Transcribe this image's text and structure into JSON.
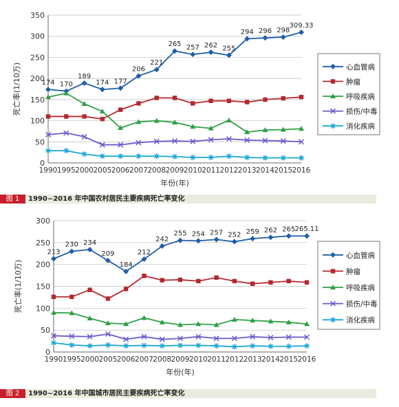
{
  "chart_data": [
    {
      "type": "line",
      "ylabel": "死亡率(1/10万)",
      "xlabel": "年份(年)",
      "ylim": [
        0,
        350
      ],
      "yticks": [
        0,
        50,
        100,
        150,
        200,
        250,
        300,
        350
      ],
      "x": [
        "1990",
        "1995",
        "2000",
        "2005",
        "2006",
        "2007",
        "2008",
        "2009",
        "2010",
        "2011",
        "2012",
        "2013",
        "2014",
        "2015",
        "2016"
      ],
      "series": [
        {
          "name": "心血管病",
          "color": "#1f5fa8",
          "marker": "diamond",
          "values": [
            174,
            170,
            189,
            174,
            177,
            206,
            221,
            265,
            257,
            262,
            255,
            294,
            296,
            298,
            309.33
          ],
          "labels": [
            "174",
            "170",
            "189",
            "174",
            "177",
            "206",
            "221",
            "265",
            "257",
            "262",
            "255",
            "294",
            "296",
            "298",
            "309.33"
          ]
        },
        {
          "name": "肿瘤",
          "color": "#b5282e",
          "marker": "square",
          "values": [
            110,
            110,
            110,
            104,
            126,
            141,
            154,
            154,
            141,
            147,
            147,
            144,
            150,
            153,
            156
          ]
        },
        {
          "name": "呼吸疾病",
          "color": "#2ea043",
          "marker": "triangle",
          "values": [
            156,
            165,
            140,
            122,
            83,
            97,
            100,
            96,
            86,
            82,
            101,
            73,
            78,
            79,
            81
          ]
        },
        {
          "name": "损伤/中毒",
          "color": "#6a5acd",
          "marker": "x",
          "values": [
            67,
            71,
            62,
            43,
            43,
            48,
            51,
            52,
            51,
            55,
            57,
            54,
            53,
            52,
            50
          ]
        },
        {
          "name": "消化疾病",
          "color": "#1ca7d6",
          "marker": "star",
          "values": [
            29,
            29,
            21,
            16,
            16,
            16,
            16,
            15,
            13,
            13,
            16,
            13,
            12,
            12,
            12
          ]
        }
      ],
      "legend": "right",
      "grid": "horizontal"
    },
    {
      "type": "line",
      "ylabel": "死亡率(1/10万)",
      "xlabel": "年份(年)",
      "ylim": [
        0,
        300
      ],
      "yticks": [
        0,
        50,
        100,
        150,
        200,
        250,
        300
      ],
      "x": [
        "1990",
        "1995",
        "2000",
        "2005",
        "2006",
        "2007",
        "2008",
        "2009",
        "2010",
        "2011",
        "2012",
        "2013",
        "2014",
        "2015",
        "2016"
      ],
      "series": [
        {
          "name": "心血管病",
          "color": "#1f5fa8",
          "marker": "diamond",
          "values": [
            213,
            230,
            234,
            209,
            184,
            212,
            242,
            255,
            254,
            257,
            252,
            259,
            262,
            265,
            265.11
          ],
          "labels": [
            "213",
            "230",
            "234",
            "209",
            "184",
            "212",
            "242",
            "255",
            "254",
            "257",
            "252",
            "259",
            "262",
            "265",
            "265.11"
          ]
        },
        {
          "name": "肿瘤",
          "color": "#b5282e",
          "marker": "square",
          "values": [
            126,
            126,
            142,
            122,
            144,
            174,
            164,
            165,
            162,
            170,
            162,
            156,
            159,
            162,
            159
          ]
        },
        {
          "name": "呼吸疾病",
          "color": "#2ea043",
          "marker": "triangle",
          "values": [
            90,
            89,
            77,
            66,
            64,
            78,
            68,
            62,
            64,
            62,
            74,
            72,
            70,
            68,
            64
          ]
        },
        {
          "name": "损伤/中毒",
          "color": "#6a5acd",
          "marker": "x",
          "values": [
            37,
            36,
            35,
            41,
            29,
            35,
            29,
            31,
            35,
            31,
            31,
            35,
            33,
            34,
            34
          ]
        },
        {
          "name": "消化疾病",
          "color": "#1ca7d6",
          "marker": "star",
          "values": [
            21,
            16,
            14,
            16,
            14,
            15,
            14,
            15,
            15,
            14,
            12,
            14,
            13,
            13,
            14
          ]
        }
      ],
      "legend": "right",
      "grid": "horizontal"
    }
  ],
  "captions": [
    {
      "tag": "图 1",
      "text": "1990~2016 年中国农村居民主要疾病死亡率变化"
    },
    {
      "tag": "图 2",
      "text": "1990~2016 年中国城市居民主要疾病死亡率变化"
    }
  ]
}
